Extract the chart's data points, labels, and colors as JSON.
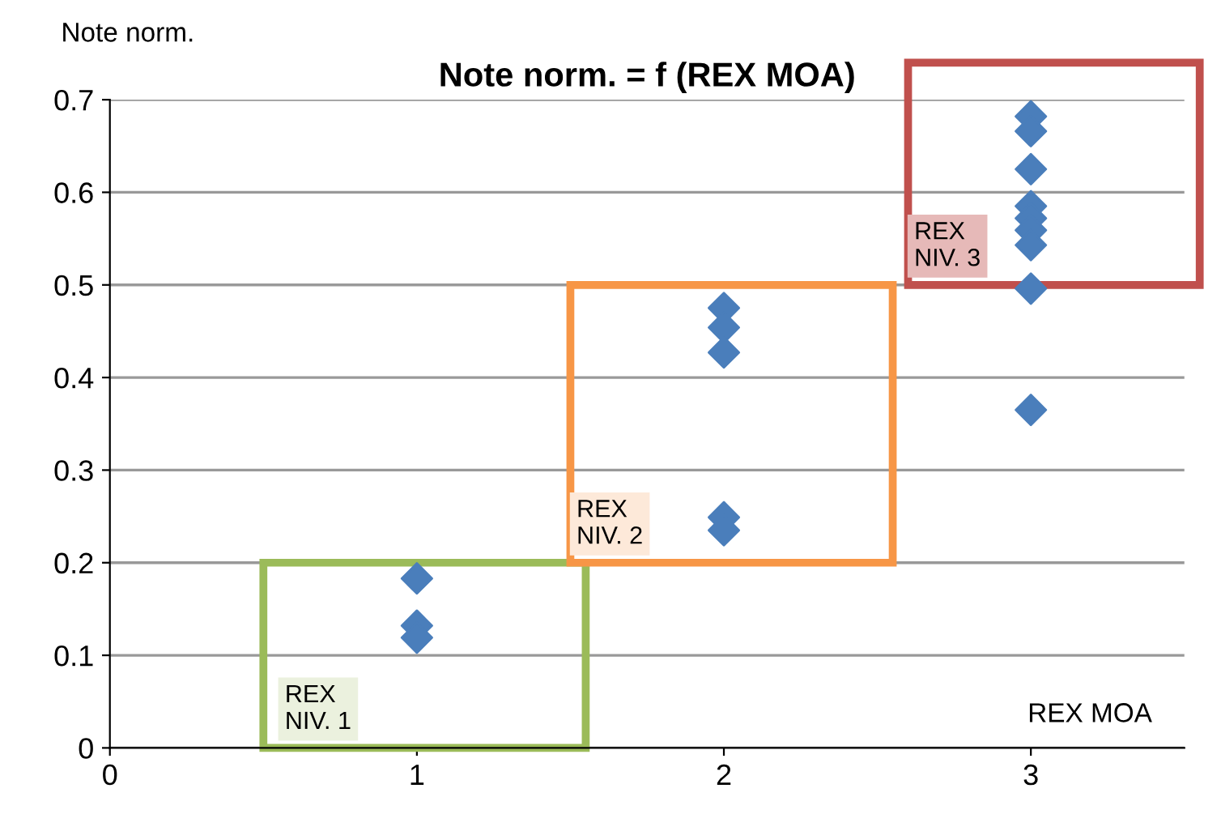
{
  "chart_data": {
    "type": "scatter",
    "title": "Note norm. = f (REX MOA)",
    "xlabel": "REX MOA",
    "ylabel": "Note norm.",
    "x": [
      1,
      1,
      1,
      2,
      2,
      2,
      2,
      2,
      3,
      3,
      3,
      3,
      3,
      3,
      3,
      3,
      3
    ],
    "values": [
      0.183,
      0.132,
      0.119,
      0.475,
      0.454,
      0.427,
      0.249,
      0.235,
      0.682,
      0.666,
      0.625,
      0.585,
      0.572,
      0.559,
      0.543,
      0.496,
      0.365
    ],
    "color": "#4a7ebb",
    "marker": "diamond",
    "xlim": [
      0,
      3.5
    ],
    "ylim": [
      0,
      0.7
    ],
    "xticks": [
      0,
      1,
      2,
      3
    ],
    "yticks": [
      0,
      0.1,
      0.2,
      0.3,
      0.4,
      0.5,
      0.6,
      0.7
    ],
    "grid": "y",
    "annotations": [
      "REX\nNIV. 1",
      "REX\nNIV. 2",
      "REX\nNIV. 3"
    ]
  }
}
